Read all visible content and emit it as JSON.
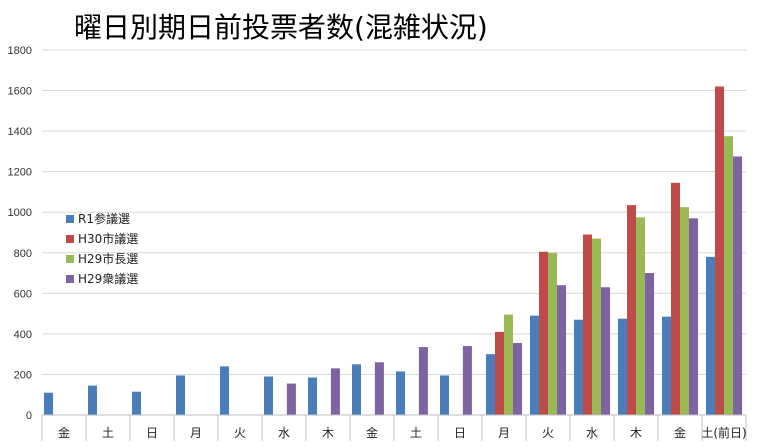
{
  "chart_data": {
    "type": "bar",
    "title": "曜日別期日前投票者数(混雑状況)",
    "ylim": [
      0,
      1800
    ],
    "yticks": [
      0,
      200,
      400,
      600,
      800,
      1000,
      1200,
      1400,
      1600,
      1800
    ],
    "grid": true,
    "legend_position": "left-middle",
    "categories": [
      "金",
      "土",
      "日",
      "月",
      "火",
      "水",
      "木",
      "金",
      "土",
      "日",
      "月",
      "火",
      "水",
      "木",
      "金",
      "土(前日)"
    ],
    "series": [
      {
        "name": "R1参議選",
        "color": "#4a7ebb",
        "values": [
          110,
          145,
          115,
          195,
          240,
          190,
          185,
          250,
          215,
          195,
          300,
          490,
          470,
          475,
          485,
          780
        ]
      },
      {
        "name": "H30市議選",
        "color": "#be4b48",
        "values": [
          null,
          null,
          null,
          null,
          null,
          null,
          null,
          null,
          null,
          null,
          410,
          805,
          890,
          1035,
          1145,
          1620
        ]
      },
      {
        "name": "H29市長選",
        "color": "#98b954",
        "values": [
          null,
          null,
          null,
          null,
          null,
          null,
          null,
          null,
          null,
          null,
          495,
          800,
          870,
          975,
          1025,
          1375
        ]
      },
      {
        "name": "H29衆議選",
        "color": "#7e62a1",
        "values": [
          null,
          null,
          null,
          null,
          null,
          155,
          230,
          260,
          335,
          340,
          355,
          640,
          630,
          700,
          970,
          1275
        ]
      }
    ]
  }
}
